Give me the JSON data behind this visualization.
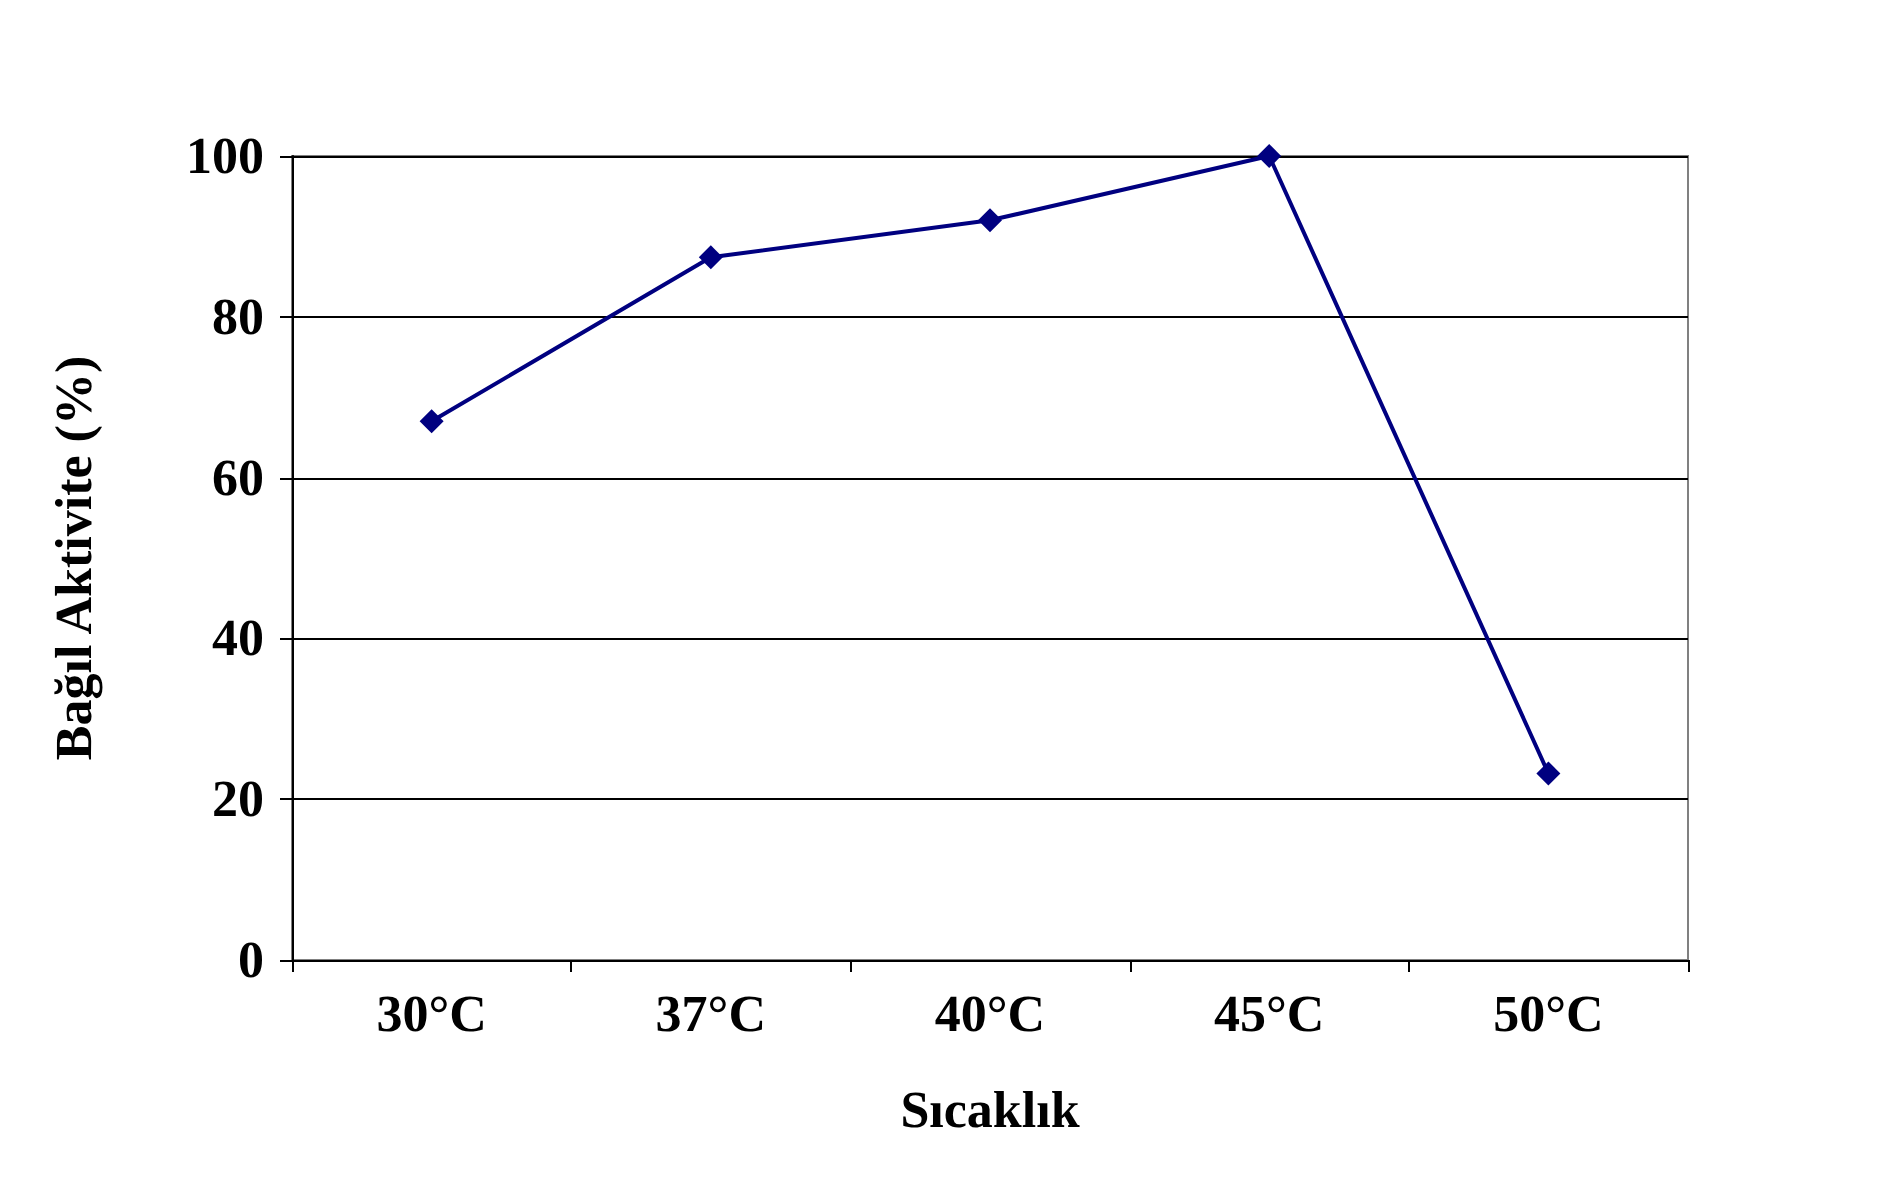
{
  "chart_data": {
    "type": "line",
    "xlabel": "Sıcaklık",
    "ylabel": "Bağıl Aktivite (%)",
    "categories": [
      "30°C",
      "37°C",
      "40°C",
      "45°C",
      "50°C"
    ],
    "series": [
      {
        "color": "#000080",
        "values": [
          67,
          87.4,
          92,
          100,
          23.2
        ]
      }
    ],
    "ylim": [
      0,
      100
    ],
    "yticks": [
      0,
      20,
      40,
      60,
      80,
      100
    ],
    "grid": "y",
    "marker": "diamond",
    "line_style": "solid"
  }
}
